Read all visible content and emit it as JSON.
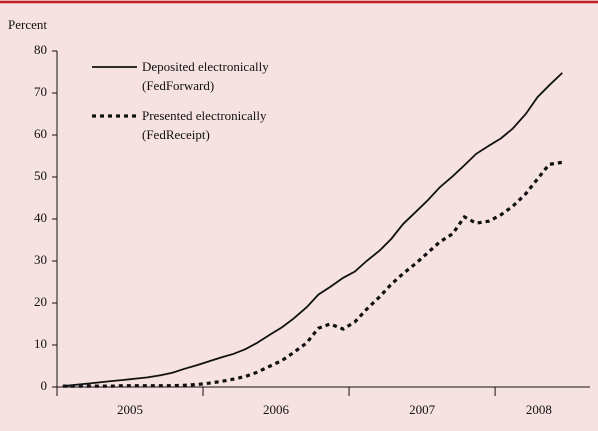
{
  "chart_data": {
    "type": "line",
    "y_label": "Percent",
    "x": [
      2005.04,
      2005.12,
      2005.21,
      2005.29,
      2005.37,
      2005.46,
      2005.54,
      2005.62,
      2005.71,
      2005.79,
      2005.87,
      2005.96,
      2006.04,
      2006.12,
      2006.21,
      2006.29,
      2006.37,
      2006.46,
      2006.54,
      2006.62,
      2006.71,
      2006.79,
      2006.87,
      2006.96,
      2007.04,
      2007.12,
      2007.21,
      2007.29,
      2007.37,
      2007.46,
      2007.54,
      2007.62,
      2007.71,
      2007.79,
      2007.87,
      2007.96,
      2008.04,
      2008.12,
      2008.21,
      2008.29,
      2008.37,
      2008.46
    ],
    "series": [
      {
        "name": "Deposited electronically\n(FedForward)",
        "color": "#111111",
        "dash": "solid",
        "values": [
          0.2,
          0.5,
          0.8,
          1.1,
          1.4,
          1.7,
          2.0,
          2.3,
          2.8,
          3.4,
          4.3,
          5.2,
          6.1,
          7.0,
          7.9,
          9.0,
          10.5,
          12.5,
          14.2,
          16.3,
          19,
          22,
          23.8,
          26,
          27.5,
          30,
          32.5,
          35.3,
          38.8,
          41.8,
          44.5,
          47.5,
          50.2,
          52.8,
          55.5,
          57.5,
          59.2,
          61.5,
          65,
          69,
          71.8,
          74.8
        ]
      },
      {
        "name": "Presented electronically\n(FedReceipt)",
        "color": "#111111",
        "dash": "dashed",
        "values": [
          0.2,
          0.2,
          0.2,
          0.2,
          0.2,
          0.3,
          0.3,
          0.3,
          0.3,
          0.3,
          0.4,
          0.6,
          0.9,
          1.3,
          1.9,
          2.5,
          3.5,
          5,
          6.3,
          8.2,
          10.5,
          14,
          15,
          13.8,
          15.5,
          18.5,
          21.5,
          24.5,
          27,
          29.5,
          32,
          34.5,
          36.5,
          40.5,
          39,
          39.5,
          41,
          43,
          46,
          49.5,
          53,
          53.5
        ]
      }
    ],
    "xlim": [
      2005,
      2008.65
    ],
    "xticks": [
      {
        "value": 2005.5,
        "label": "2005"
      },
      {
        "value": 2006.5,
        "label": "2006"
      },
      {
        "value": 2007.5,
        "label": "2007"
      },
      {
        "value": 2008.3,
        "label": "2008"
      }
    ],
    "xtick_marks": [
      2005,
      2006,
      2007,
      2008
    ],
    "ylim": [
      0,
      80
    ],
    "yticks": [
      0,
      10,
      20,
      30,
      40,
      50,
      60,
      70,
      80
    ],
    "grid": false
  }
}
